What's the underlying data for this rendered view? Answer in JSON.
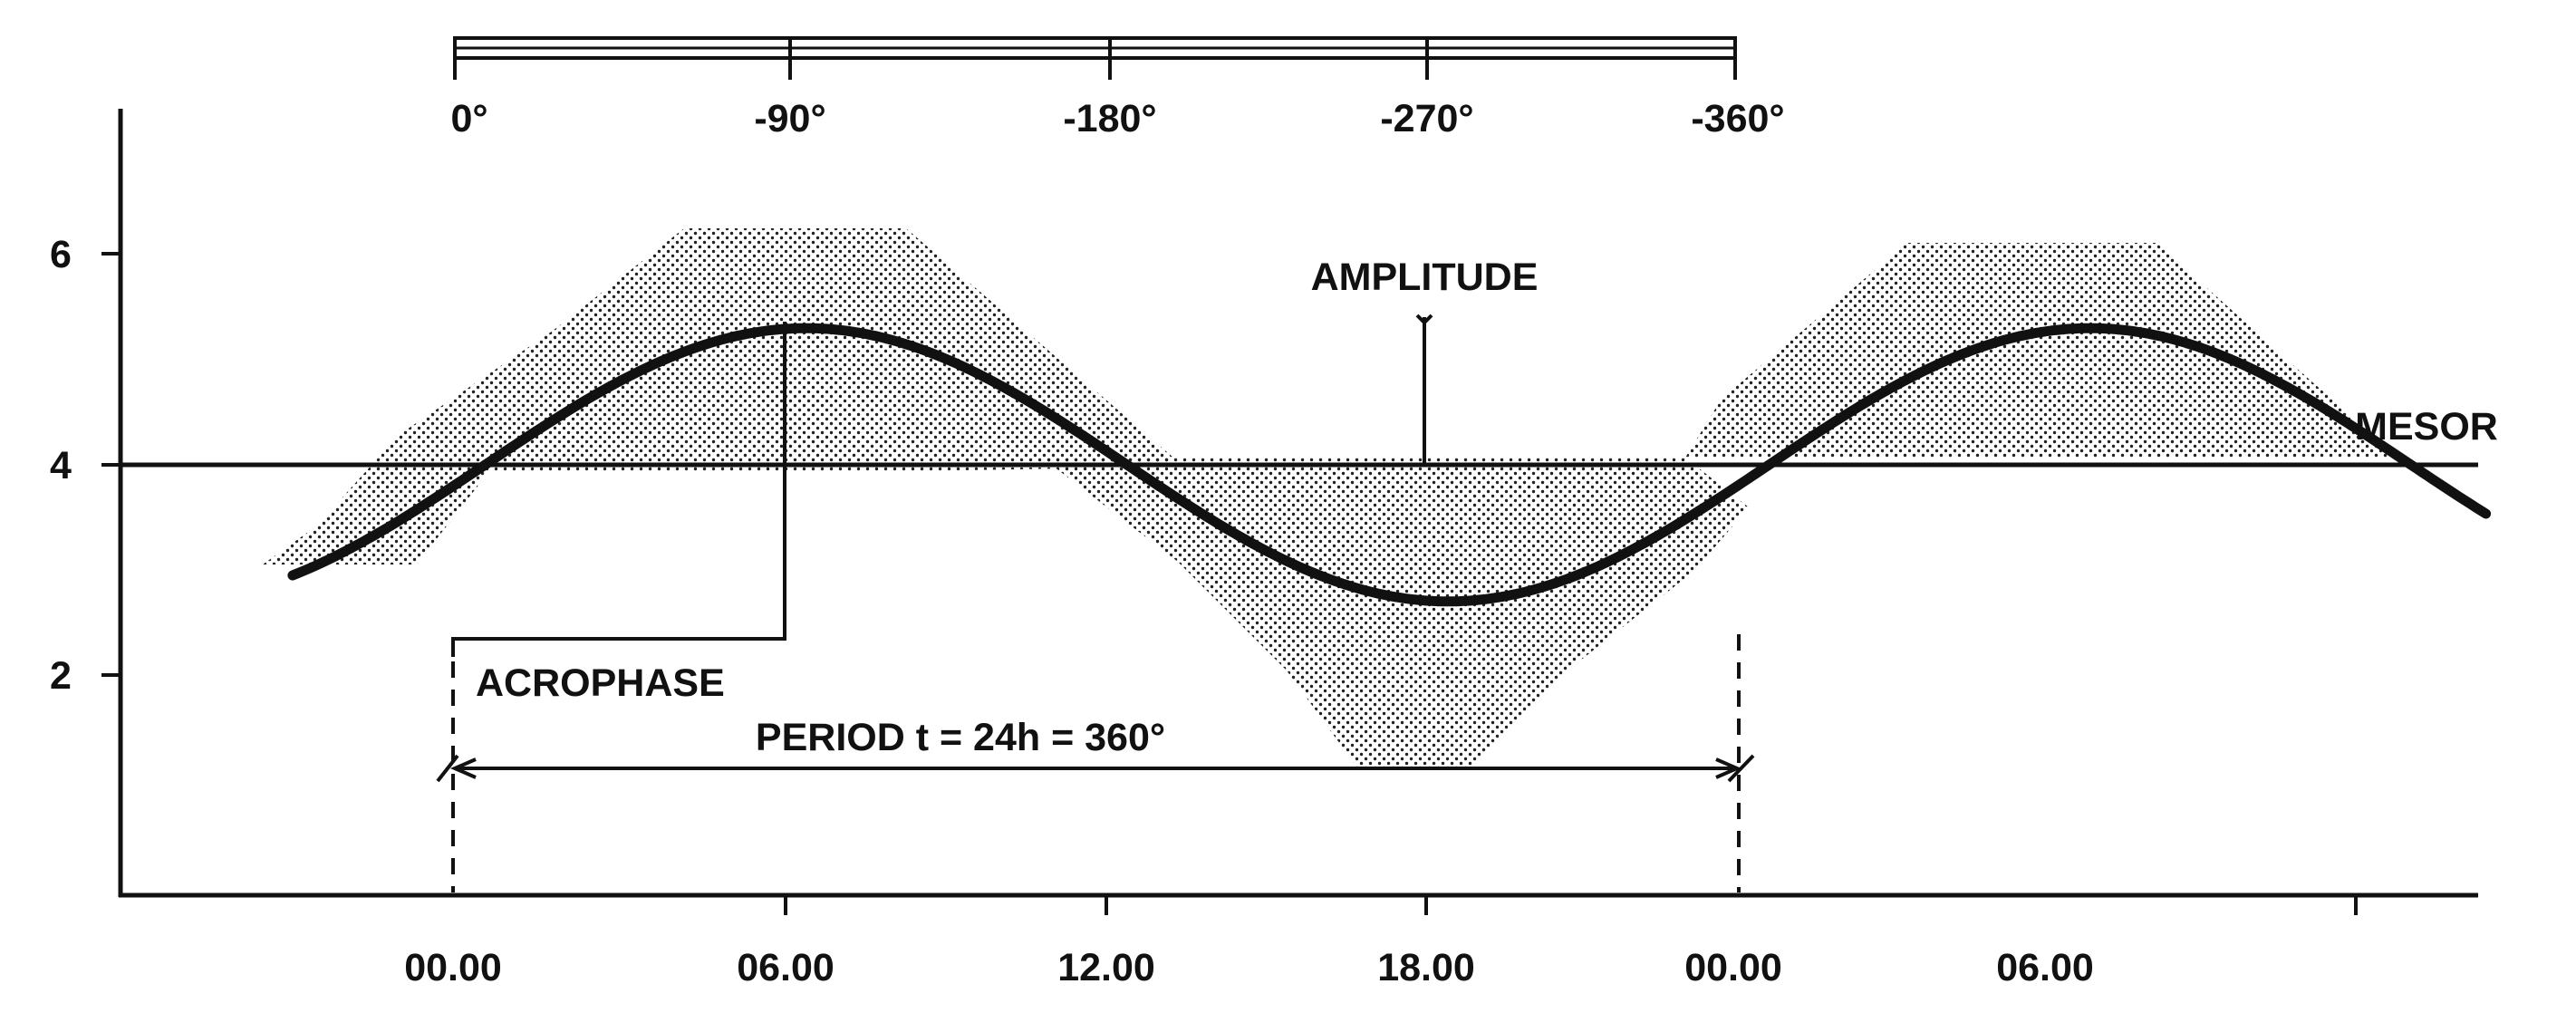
{
  "phase_scale": {
    "labels": [
      "0°",
      "-90°",
      "-180°",
      "-270°",
      "-360°"
    ]
  },
  "y_axis": {
    "tick_labels": [
      "6",
      "4",
      "2"
    ],
    "tick_values": [
      6,
      4,
      2
    ]
  },
  "x_axis": {
    "tick_labels": [
      "00.00",
      "06.00",
      "12.00",
      "18.00",
      "00.00",
      "06.00"
    ],
    "tick_values_h": [
      0,
      6,
      12,
      18,
      24,
      30
    ]
  },
  "annotations": {
    "amplitude": "AMPLITUDE",
    "mesor": "MESOR",
    "acrophase": "ACROPHASE",
    "period": "PERIOD  t = 24h = 360°"
  },
  "curve": {
    "mesor": 4,
    "amplitude": 1.3,
    "acrophase_h": 6.6,
    "period_h": 24,
    "x_range_h": [
      -3,
      38
    ]
  },
  "colors": {
    "ink": "#111111",
    "dots": "#222222"
  }
}
